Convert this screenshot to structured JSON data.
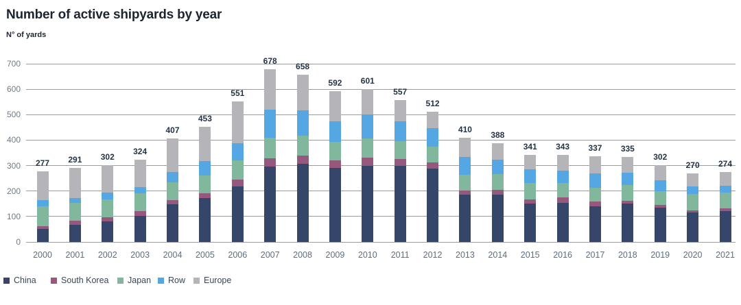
{
  "title": "Number of active shipyards by year",
  "subtitle": "N° of yards",
  "colors": {
    "china": "#36466b",
    "south_korea": "#96597d",
    "japan": "#81b79c",
    "row": "#55a7e3",
    "europe": "#b5b4b8",
    "gridline": "#9b9b9b",
    "total_label_text": "#243447",
    "axis_text": "#707a85",
    "xaxis_text": "#5d6d7e",
    "title_text": "#1c2430"
  },
  "chart_data": {
    "type": "bar",
    "stacked": true,
    "title": "Number of active shipyards by year",
    "ylabel": "N° of yards",
    "xlabel": "",
    "grid": true,
    "legend_position": "bottom-left",
    "ylim": [
      0,
      700
    ],
    "yticks": [
      0,
      100,
      200,
      300,
      400,
      500,
      600,
      700
    ],
    "categories": [
      "2000",
      "2001",
      "2002",
      "2003",
      "2004",
      "2005",
      "2006",
      "2007",
      "2008",
      "2009",
      "2010",
      "2011",
      "2012",
      "2013",
      "2014",
      "2015",
      "2016",
      "2017",
      "2018",
      "2019",
      "2020",
      "2021"
    ],
    "series": [
      {
        "name": "China",
        "color": "#36466b",
        "values": [
          50,
          66,
          80,
          102,
          149,
          172,
          219,
          295,
          308,
          290,
          300,
          300,
          287,
          185,
          185,
          150,
          153,
          140,
          150,
          135,
          116,
          122
        ]
      },
      {
        "name": "South Korea",
        "color": "#96597d",
        "values": [
          13,
          18,
          18,
          19,
          16,
          18,
          25,
          34,
          30,
          30,
          30,
          25,
          25,
          18,
          20,
          18,
          21,
          18,
          12,
          10,
          9,
          10
        ]
      },
      {
        "name": "Japan",
        "color": "#81b79c",
        "values": [
          77,
          69,
          68,
          70,
          69,
          72,
          76,
          80,
          80,
          72,
          76,
          70,
          62,
          60,
          62,
          63,
          57,
          56,
          62,
          55,
          63,
          61
        ]
      },
      {
        "name": "Row",
        "color": "#55a7e3",
        "values": [
          24,
          18,
          28,
          24,
          40,
          56,
          68,
          111,
          99,
          82,
          94,
          79,
          74,
          72,
          57,
          54,
          49,
          55,
          49,
          42,
          29,
          29
        ]
      },
      {
        "name": "Europe",
        "color": "#b5b4b8",
        "values": [
          113,
          120,
          108,
          109,
          133,
          135,
          163,
          158,
          141,
          118,
          101,
          83,
          64,
          75,
          64,
          56,
          63,
          68,
          62,
          60,
          53,
          52
        ]
      }
    ],
    "totals": [
      277,
      291,
      302,
      324,
      407,
      453,
      551,
      678,
      658,
      592,
      601,
      557,
      512,
      410,
      388,
      341,
      343,
      337,
      335,
      302,
      270,
      274
    ]
  }
}
